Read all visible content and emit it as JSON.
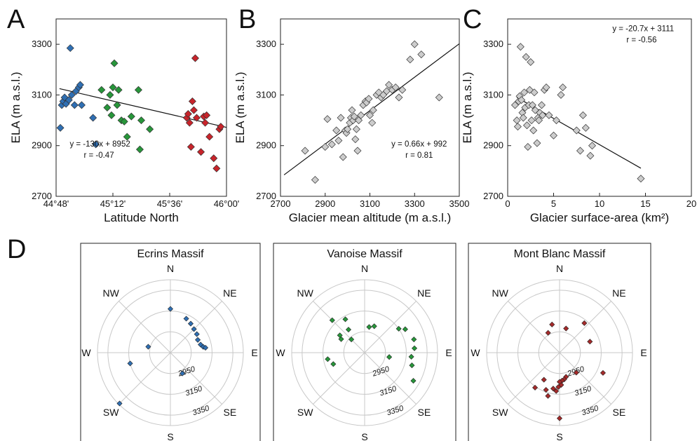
{
  "chart_data": [
    {
      "panel": "A",
      "type": "scatter",
      "xlabel": "Latitude North",
      "ylabel": "ELA (m a.s.l.)",
      "xlim": [
        44.8,
        46.0
      ],
      "ylim": [
        2700,
        3400
      ],
      "x_ticks": [
        {
          "v": 44.8,
          "label": "44°48'"
        },
        {
          "v": 45.2,
          "label": "45°12'"
        },
        {
          "v": 45.6,
          "label": "45°36'"
        },
        {
          "v": 46.0,
          "label": "46°00'"
        }
      ],
      "y_ticks": [
        2700,
        2900,
        3100,
        3300
      ],
      "equation": "y = -130x + 8952",
      "r": "r = -0.47",
      "fit": {
        "slope": -130,
        "intercept": 8952
      },
      "series": [
        {
          "color": "#2f6fb3",
          "points": [
            [
              44.83,
              2970
            ],
            [
              44.84,
              3060
            ],
            [
              44.85,
              3075
            ],
            [
              44.86,
              3090
            ],
            [
              44.87,
              3065
            ],
            [
              44.89,
              3080
            ],
            [
              44.9,
              3285
            ],
            [
              44.91,
              3100
            ],
            [
              44.93,
              3060
            ],
            [
              44.94,
              3115
            ],
            [
              44.96,
              3130
            ],
            [
              44.97,
              3140
            ],
            [
              44.98,
              3060
            ],
            [
              45.06,
              3010
            ],
            [
              45.08,
              2905
            ]
          ]
        },
        {
          "color": "#27963a",
          "points": [
            [
              45.12,
              3120
            ],
            [
              45.16,
              3050
            ],
            [
              45.18,
              3100
            ],
            [
              45.19,
              3020
            ],
            [
              45.2,
              3130
            ],
            [
              45.21,
              3225
            ],
            [
              45.23,
              3060
            ],
            [
              45.24,
              3120
            ],
            [
              45.26,
              3000
            ],
            [
              45.28,
              2995
            ],
            [
              45.3,
              2935
            ],
            [
              45.33,
              3015
            ],
            [
              45.38,
              3120
            ],
            [
              45.39,
              2885
            ],
            [
              45.4,
              3000
            ],
            [
              45.46,
              2965
            ]
          ]
        },
        {
          "color": "#c8242b",
          "points": [
            [
              45.72,
              3010
            ],
            [
              45.73,
              3025
            ],
            [
              45.74,
              2990
            ],
            [
              45.75,
              2895
            ],
            [
              45.76,
              3075
            ],
            [
              45.77,
              3040
            ],
            [
              45.78,
              3245
            ],
            [
              45.79,
              3010
            ],
            [
              45.82,
              2875
            ],
            [
              45.84,
              3015
            ],
            [
              45.85,
              2990
            ],
            [
              45.86,
              3020
            ],
            [
              45.88,
              2935
            ],
            [
              45.91,
              2850
            ],
            [
              45.93,
              2810
            ],
            [
              45.95,
              2965
            ],
            [
              45.96,
              2975
            ]
          ]
        }
      ]
    },
    {
      "panel": "B",
      "type": "scatter",
      "xlabel": "Glacier mean altitude (m a.s.l.)",
      "ylabel": "ELA (m a.s.l.)",
      "xlim": [
        2700,
        3500
      ],
      "ylim": [
        2700,
        3400
      ],
      "x_ticks": [
        2700,
        2900,
        3100,
        3300,
        3500
      ],
      "y_ticks": [
        2700,
        2900,
        3100,
        3300
      ],
      "equation": "y = 0.66x + 992",
      "r": "r = 0.81",
      "fit": {
        "slope": 0.66,
        "intercept": 992
      },
      "series": [
        {
          "color": "#cccccc",
          "points": [
            [
              2810,
              2880
            ],
            [
              2855,
              2765
            ],
            [
              2900,
              2895
            ],
            [
              2910,
              3005
            ],
            [
              2930,
              2905
            ],
            [
              2950,
              2960
            ],
            [
              2960,
              2920
            ],
            [
              2970,
              3010
            ],
            [
              2980,
              2855
            ],
            [
              2990,
              2960
            ],
            [
              2995,
              2950
            ],
            [
              3000,
              2965
            ],
            [
              3010,
              2990
            ],
            [
              3015,
              3010
            ],
            [
              3020,
              3040
            ],
            [
              3025,
              3000
            ],
            [
              3030,
              3015
            ],
            [
              3035,
              2925
            ],
            [
              3040,
              2965
            ],
            [
              3045,
              2880
            ],
            [
              3050,
              3000
            ],
            [
              3060,
              3020
            ],
            [
              3070,
              3060
            ],
            [
              3080,
              3075
            ],
            [
              3085,
              3070
            ],
            [
              3095,
              3085
            ],
            [
              3100,
              3020
            ],
            [
              3110,
              2990
            ],
            [
              3115,
              3040
            ],
            [
              3130,
              3100
            ],
            [
              3140,
              3110
            ],
            [
              3150,
              3090
            ],
            [
              3160,
              3100
            ],
            [
              3175,
              3115
            ],
            [
              3185,
              3140
            ],
            [
              3200,
              3120
            ],
            [
              3215,
              3130
            ],
            [
              3230,
              3090
            ],
            [
              3245,
              3120
            ],
            [
              3280,
              3240
            ],
            [
              3300,
              3300
            ],
            [
              3330,
              3260
            ],
            [
              3410,
              3090
            ]
          ]
        }
      ]
    },
    {
      "panel": "C",
      "type": "scatter",
      "xlabel": "Glacier surface-area (km²)",
      "ylabel": "ELA (m a.s.l.)",
      "xlim": [
        0,
        20
      ],
      "ylim": [
        2700,
        3400
      ],
      "x_ticks": [
        0,
        5,
        10,
        15,
        20
      ],
      "y_ticks": [
        2700,
        2900,
        3100,
        3300
      ],
      "equation": "y = -20.7x + 3111",
      "r": "r = -0.56",
      "fit": {
        "slope": -20.7,
        "intercept": 3111
      },
      "fit_range": [
        1,
        14.5
      ],
      "series": [
        {
          "color": "#cccccc",
          "points": [
            [
              0.8,
              3060
            ],
            [
              1.0,
              3000
            ],
            [
              1.1,
              2975
            ],
            [
              1.2,
              3075
            ],
            [
              1.3,
              3095
            ],
            [
              1.4,
              3290
            ],
            [
              1.5,
              3080
            ],
            [
              1.6,
              3030
            ],
            [
              1.7,
              3010
            ],
            [
              1.8,
              3110
            ],
            [
              1.9,
              3050
            ],
            [
              2.0,
              3250
            ],
            [
              2.1,
              2980
            ],
            [
              2.2,
              2895
            ],
            [
              2.3,
              3060
            ],
            [
              2.4,
              3120
            ],
            [
              2.5,
              3230
            ],
            [
              2.6,
              3000
            ],
            [
              2.7,
              3060
            ],
            [
              2.8,
              2960
            ],
            [
              2.9,
              3110
            ],
            [
              3.0,
              3040
            ],
            [
              3.2,
              2910
            ],
            [
              3.3,
              3010
            ],
            [
              3.4,
              3000
            ],
            [
              3.5,
              3030
            ],
            [
              3.7,
              3060
            ],
            [
              3.8,
              3020
            ],
            [
              4.0,
              3120
            ],
            [
              4.2,
              3130
            ],
            [
              4.5,
              3020
            ],
            [
              5.0,
              2940
            ],
            [
              5.3,
              3000
            ],
            [
              5.8,
              3100
            ],
            [
              6.0,
              3130
            ],
            [
              7.5,
              2960
            ],
            [
              7.9,
              2880
            ],
            [
              8.2,
              3020
            ],
            [
              8.5,
              2970
            ],
            [
              9.0,
              2860
            ],
            [
              9.2,
              2900
            ],
            [
              14.5,
              2770
            ]
          ]
        }
      ]
    },
    {
      "panel": "D",
      "type": "scatter",
      "projection": "polar",
      "rings": [
        2950,
        3150,
        3350
      ],
      "r_range": [
        2750,
        3450
      ],
      "directions": [
        "N",
        "NE",
        "E",
        "SE",
        "S",
        "SW",
        "W",
        "NW"
      ],
      "subplots": [
        {
          "title": "Ecrins Massif",
          "color": "#2f6fb3",
          "points": [
            [
              0,
              3170
            ],
            [
              25,
              3110
            ],
            [
              35,
              3090
            ],
            [
              45,
              3070
            ],
            [
              55,
              3060
            ],
            [
              65,
              3040
            ],
            [
              75,
              3050
            ],
            [
              80,
              3070
            ],
            [
              82,
              3090
            ],
            [
              150,
              2980
            ],
            [
              255,
              3150
            ],
            [
              285,
              2970
            ],
            [
              225,
              3440
            ]
          ]
        },
        {
          "title": "Vanoise Massif",
          "color": "#27963a",
          "points": [
            [
              315,
              3190
            ],
            [
              330,
              3120
            ],
            [
              325,
              3020
            ],
            [
              305,
              3040
            ],
            [
              300,
              3010
            ],
            [
              315,
              2930
            ],
            [
              10,
              3000
            ],
            [
              20,
              3020
            ],
            [
              55,
              3150
            ],
            [
              60,
              3200
            ],
            [
              75,
              3240
            ],
            [
              85,
              3230
            ],
            [
              95,
              3200
            ],
            [
              105,
              3220
            ],
            [
              120,
              3290
            ],
            [
              100,
              2990
            ],
            [
              250,
              3070
            ],
            [
              260,
              3110
            ]
          ]
        },
        {
          "title": "Mont Blanc Massif",
          "color": "#a52a2a",
          "points": [
            [
              345,
              3030
            ],
            [
              330,
              2970
            ],
            [
              15,
              2990
            ],
            [
              40,
              3120
            ],
            [
              70,
              3060
            ],
            [
              115,
              3210
            ],
            [
              140,
              3000
            ],
            [
              165,
              2990
            ],
            [
              170,
              3010
            ],
            [
              175,
              3020
            ],
            [
              177,
              3060
            ],
            [
              180,
              3030
            ],
            [
              182,
              3080
            ],
            [
              185,
              3120
            ],
            [
              190,
              3100
            ],
            [
              195,
              3180
            ],
            [
              200,
              3130
            ],
            [
              210,
              3050
            ],
            [
              215,
              3160
            ],
            [
              180,
              3380
            ]
          ]
        }
      ]
    }
  ],
  "labels": {
    "A": "A",
    "B": "B",
    "C": "C",
    "D": "D",
    "ring_labels": [
      "2950",
      "3150",
      "3350"
    ]
  }
}
